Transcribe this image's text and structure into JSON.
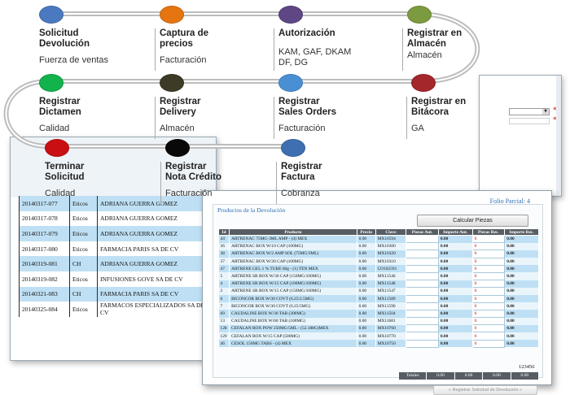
{
  "flow": [
    {
      "title": "Solicitud\nDevolución",
      "subtitle": "Fuerza de ventas",
      "color": "#4b79c0"
    },
    {
      "title": "Captura de\nprecios",
      "subtitle": "Facturación",
      "color": "#e47510"
    },
    {
      "title": "Autorización",
      "subtitle": "KAM, GAF, DKAM\nDF, DG",
      "color": "#5f4685"
    },
    {
      "title": "Registrar en\nAlmacén",
      "subtitle": "Almacén",
      "color": "#7c9a3f"
    },
    {
      "title": "Registrar\nDictamen",
      "subtitle": "Calidad",
      "color": "#12b24c"
    },
    {
      "title": "Registrar\nDelivery",
      "subtitle": "Almacén",
      "color": "#3d3a26"
    },
    {
      "title": "Registrar\nSales Orders",
      "subtitle": "Facturación",
      "color": "#4a8fd4"
    },
    {
      "title": "Registrar en\nBitácora",
      "subtitle": "GA",
      "color": "#a4272b"
    },
    {
      "title": "Terminar\nSolicitud",
      "subtitle": "Calidad",
      "color": "#c90f12"
    },
    {
      "title": "Registrar\nNota Crédito",
      "subtitle": "Facturación",
      "color": "#090909"
    },
    {
      "title": "Registrar\nFactura",
      "subtitle": "Cobranza",
      "color": "#3f6fb0"
    }
  ],
  "left_table": [
    [
      "20140317-077",
      "Eticos",
      "ADRIANA GUERRA GOMEZ"
    ],
    [
      "20140317-078",
      "Eticos",
      "ADRIANA GUERRA GOMEZ"
    ],
    [
      "20140317-079",
      "Eticos",
      "ADRIANA GUERRA GOMEZ"
    ],
    [
      "20140317-080",
      "Eticos",
      "FARMACIA PARIS SA DE CV"
    ],
    [
      "20140319-081",
      "CH",
      "ADRIANA GUERRA GOMEZ"
    ],
    [
      "20140319-082",
      "Eticos",
      "INFUSIONES GOVE SA DE CV"
    ],
    [
      "20140321-083",
      "CH",
      "FARMACIA PARIS SA DE CV"
    ],
    [
      "20140325-084",
      "Eticos",
      "FARMACOS ESPECIALIZADOS SA DE CV"
    ]
  ],
  "main": {
    "folio": "Folio Parcial: 4",
    "panel_title": "Productos de la Devolución",
    "calc_button": "Calcular Piezas",
    "headers": [
      "Id",
      "Producto",
      "Precio",
      "Clave",
      "Piezas Aut.",
      "Importe Aut.",
      "Piezas Rec.",
      "Importe Rec."
    ],
    "rows": [
      [
        "44",
        "ARTRENAC 75MG-3ML AMP - (4) MEX",
        "0.00",
        "MX10594",
        "",
        "0.00",
        "0",
        "0.00"
      ],
      [
        "36",
        "ARTRENAC BOX W/10 CAP (100MG)",
        "0.00",
        "MX10300",
        "",
        "0.00",
        "0",
        "0.00"
      ],
      [
        "38",
        "ARTRENAC BOX W/2 AMP SOL (75MG/3ML)",
        "0.00",
        "MX10320",
        "",
        "0.00",
        "0",
        "0.00"
      ],
      [
        "37",
        "ARTRENAC BOX W/20 CAP (100MG)",
        "0.00",
        "MX10310",
        "",
        "0.00",
        "0",
        "0.00"
      ],
      [
        "47",
        "ARTRENE GEL 1 % TUBE 60g - (1) TEN MEX",
        "0.00",
        "CO102591",
        "",
        "0.00",
        "0",
        "0.00"
      ],
      [
        "5",
        "ARTRENE SR BOX W/30 CAP (150MG/100MG)",
        "0.00",
        "MX11546",
        "",
        "0.00",
        "0",
        "0.00"
      ],
      [
        "4",
        "ARTRENE SR BOX W/15 CAP (100MG/100MG)",
        "0.00",
        "MX11548",
        "",
        "0.00",
        "0",
        "0.00"
      ],
      [
        "2",
        "ARTRENE SR BOX W/15 CAP (150MG/100MG)",
        "0.00",
        "MX11547",
        "",
        "0.00",
        "0",
        "0.00"
      ],
      [
        "6",
        "BICONCOR BOX W/30 COVT (6.25/2.5MG)",
        "0.00",
        "MX11589",
        "",
        "0.00",
        "0",
        "0.00"
      ],
      [
        "7",
        "BICONCOR BOX W/30 COVT (6.25/5MG)",
        "0.00",
        "MX11590",
        "",
        "0.00",
        "0",
        "0.00"
      ],
      [
        "69",
        "CAUDALINE BOX W/30 TAB (300MG)",
        "0.00",
        "MX11504",
        "",
        "0.00",
        "0",
        "0.00"
      ],
      [
        "13",
        "CAUDALINE BOX W/60 TAB (100MG)",
        "0.00",
        "MX11681",
        "",
        "0.00",
        "0",
        "0.00"
      ],
      [
        "128",
        "CEFALAN BOX POW 250MG/5ML - (52.188G)MEX",
        "0.00",
        "MX10760",
        "",
        "0.00",
        "0",
        "0.00"
      ],
      [
        "129",
        "CEFALAN BOX W/15 CAP (500MG)",
        "0.00",
        "MX10770",
        "",
        "0.00",
        "0",
        "0.00"
      ],
      [
        "46",
        "CESOL 150MG TABS - (4) MEX",
        "0.00",
        "MX10750",
        "",
        "0.00",
        "0",
        "0.00"
      ]
    ],
    "extra_value": "123456",
    "totals_label": "Totales",
    "totals": [
      "0.00",
      "0.00",
      "0.00",
      "0.00"
    ],
    "register_button": "« Registrar Solicitud de Devolución »"
  }
}
